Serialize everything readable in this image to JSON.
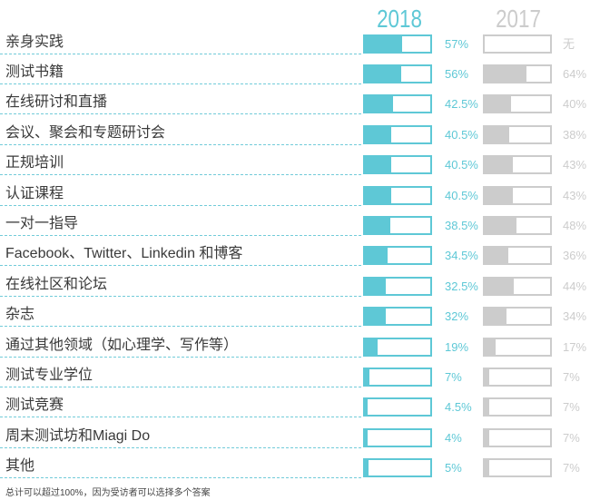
{
  "chart_data": {
    "type": "bar",
    "orientation": "horizontal",
    "categories": [
      "亲身实践",
      "测试书籍",
      "在线研讨和直播",
      "会议、聚会和专题研讨会",
      "正规培训",
      "认证课程",
      "一对一指导",
      "Facebook、Twitter、Linkedin 和博客",
      "在线社区和论坛",
      "杂志",
      "通过其他领域（如心理学、写作等）",
      "测试专业学位",
      "测试竞赛",
      "周末测试坊和Miagi Do",
      "其他"
    ],
    "series": [
      {
        "name": "2018",
        "color": "#5ec8d6",
        "values": [
          57,
          56,
          42.5,
          40.5,
          40.5,
          40.5,
          38.5,
          34.5,
          32.5,
          32,
          19,
          7,
          4.5,
          4,
          5
        ],
        "value_labels": [
          "57%",
          "56%",
          "42.5%",
          "40.5%",
          "40.5%",
          "40.5%",
          "38.5%",
          "34.5%",
          "32.5%",
          "32%",
          "19%",
          "7%",
          "4.5%",
          "4%",
          "5%"
        ]
      },
      {
        "name": "2017",
        "color": "#cccccc",
        "values": [
          null,
          64,
          40,
          38,
          43,
          43,
          48,
          36,
          44,
          34,
          17,
          7,
          7,
          7,
          7
        ],
        "value_labels": [
          "无",
          "64%",
          "40%",
          "38%",
          "43%",
          "43%",
          "48%",
          "36%",
          "44%",
          "34%",
          "17%",
          "7%",
          "7%",
          "7%",
          "7%"
        ]
      }
    ],
    "xlim": [
      0,
      100
    ],
    "footnote": "总计可以超过100%，因为受访者可以选择多个答案"
  }
}
